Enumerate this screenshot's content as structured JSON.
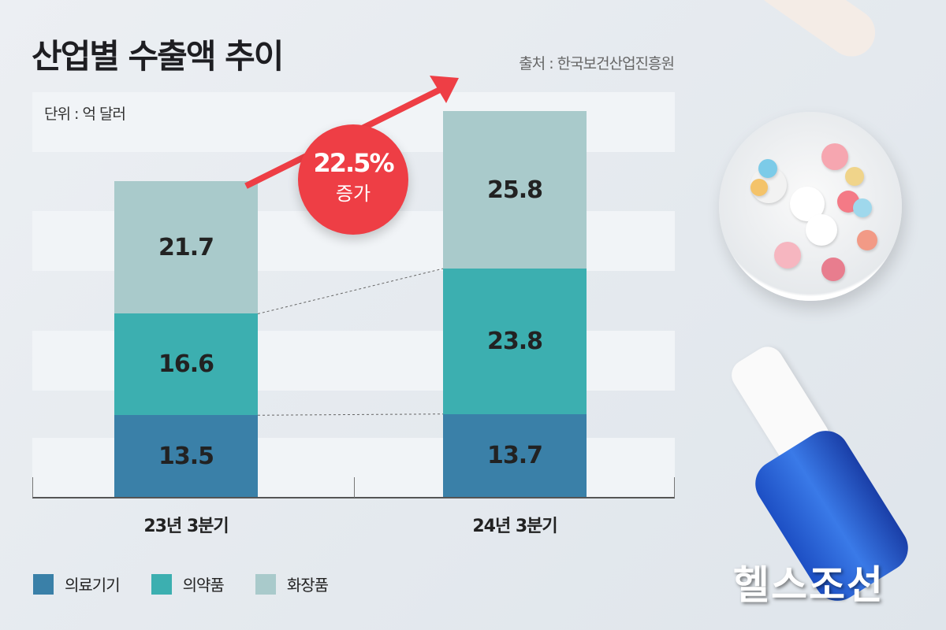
{
  "chart_data": {
    "type": "bar",
    "stacked": true,
    "title": "산업별 수출액 추이",
    "source": "출처 : 한국보건산업진흥원",
    "unit": "단위 : 억 달러",
    "categories": [
      "23년 3분기",
      "24년 3분기"
    ],
    "series": [
      {
        "name": "의료기기",
        "color": "#3a80a8",
        "values": [
          13.5,
          13.7
        ]
      },
      {
        "name": "의약품",
        "color": "#3cafb0",
        "values": [
          16.6,
          23.8
        ]
      },
      {
        "name": "화장품",
        "color": "#a9cacb",
        "values": [
          21.7,
          25.8
        ]
      }
    ],
    "annotation": {
      "value": "22.5%",
      "label": "증가"
    },
    "ylim": [
      0,
      66
    ],
    "grid": "banded",
    "legend": "bottom-left"
  },
  "brand": "헬스조선"
}
